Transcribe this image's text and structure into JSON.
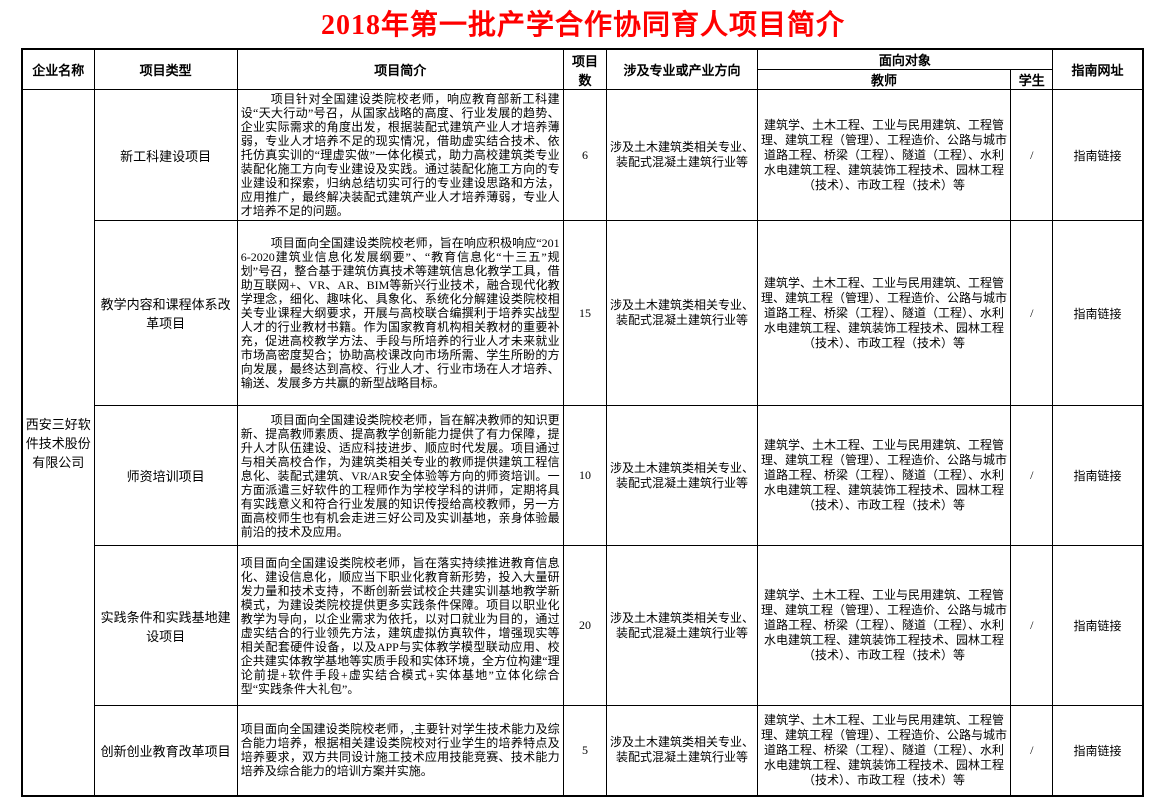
{
  "title": "2018年第一批产学合作协同育人项目简介",
  "colors": {
    "title_red": "#ff0000",
    "border": "#000000",
    "background": "#ffffff"
  },
  "table": {
    "header": {
      "company": "企业名称",
      "type": "项目类型",
      "intro": "项目简介",
      "count": "项目数",
      "majors": "涉及专业或产业方向",
      "audience": "面向对象",
      "teacher": "教师",
      "student": "学生",
      "url": "指南网址"
    },
    "company": "西安三好软件技术股份有限公司",
    "rows": [
      {
        "type": "新工科建设项目",
        "intro": "项目针对全国建设类院校老师，响应教育部新工科建设“天大行动”号召，从国家战略的高度、行业发展的趋势、企业实际需求的角度出发，根据装配式建筑产业人才培养薄弱，专业人才培养不足的现实情况，借助虚实结合技术、依托仿真实训的“理虚实做”一体化模式，助力高校建筑类专业装配化施工方向专业建设及实践。通过装配化施工方向的专业建设和探索，归纳总结切实可行的专业建设思路和方法，应用推广，最终解决装配式建筑产业人才培养薄弱，专业人才培养不足的问题。",
        "count": "6",
        "majors": "涉及土木建筑类相关专业、装配式混凝土建筑行业等",
        "teachers": "建筑学、土木工程、工业与民用建筑、工程管理、建筑工程（管理）、工程造价、公路与城市道路工程、桥梁（工程）、隧道（工程）、水利水电建筑工程、建筑装饰工程技术、园林工程（技术）、市政工程（技术）等",
        "students": "/",
        "url": "指南链接"
      },
      {
        "type": "教学内容和课程体系改革项目",
        "intro": "项目面向全国建设类院校老师，旨在响应积极响应“2016-2020建筑业信息化发展纲要”、“教育信息化“十三五”规划”号召，整合基于建筑仿真技术等建筑信息化教学工具，借助互联网+、VR、AR、BIM等新兴行业技术，融合现代化教学理念，细化、趣味化、具象化、系统化分解建设类院校相关专业课程大纲要求，开展与高校联合编撰利于培养实战型人才的行业教材书籍。作为国家教育机构相关教材的重要补充，促进高校教学方法、手段与所培养的行业人才未来就业市场高密度契合；协助高校课改向市场所需、学生所盼的方向发展，最终达到高校、行业人才、行业市场在人才培养、输送、发展多方共赢的新型战略目标。",
        "count": "15",
        "majors": "涉及土木建筑类相关专业、装配式混凝土建筑行业等",
        "teachers": "建筑学、土木工程、工业与民用建筑、工程管理、建筑工程（管理）、工程造价、公路与城市道路工程、桥梁（工程）、隧道（工程）、水利水电建筑工程、建筑装饰工程技术、园林工程（技术）、市政工程（技术）等",
        "students": "/",
        "url": "指南链接"
      },
      {
        "type": "师资培训项目",
        "intro": "项目面向全国建设类院校老师，旨在解决教师的知识更新、提高教师素质、提高教学创新能力提供了有力保障，提升人才队伍建设、适应科技进步、顺应时代发展。项目通过与相关高校合作，为建筑类相关专业的教师提供建筑工程信息化、装配式建筑、VR/AR安全体验等方向的师资培训。一方面派遣三好软件的工程师作为学校学科的讲师，定期将具有实践意义和符合行业发展的知识传授给高校教师，另一方面高校师生也有机会走进三好公司及实训基地，亲身体验最前沿的技术及应用。",
        "count": "10",
        "majors": "涉及土木建筑类相关专业、装配式混凝土建筑行业等",
        "teachers": "建筑学、土木工程、工业与民用建筑、工程管理、建筑工程（管理）、工程造价、公路与城市道路工程、桥梁（工程）、隧道（工程）、水利水电建筑工程、建筑装饰工程技术、园林工程（技术）、市政工程（技术）等",
        "students": "/",
        "url": "指南链接"
      },
      {
        "type": "实践条件和实践基地建设项目",
        "intro": "项目面向全国建设类院校老师，旨在落实持续推进教育信息化、建设信息化，顺应当下职业化教育新形势，投入大量研发力量和技术支持，不断创新尝试校企共建实训基地教学新模式，为建设类院校提供更多实践条件保障。项目以职业化教学为导向，以企业需求为依托，以对口就业为目的，通过虚实结合的行业领先方法，建筑虚拟仿真软件，增强现实等相关配套硬件设备，以及APP与实体教学模型联动应用、校企共建实体教学基地等实质手段和实体环境，全方位构建“理论前提+软件手段+虚实结合模式+实体基地”立体化综合型“实践条件大礼包”。",
        "count": "20",
        "majors": "涉及土木建筑类相关专业、装配式混凝土建筑行业等",
        "teachers": "建筑学、土木工程、工业与民用建筑、工程管理、建筑工程（管理）、工程造价、公路与城市道路工程、桥梁（工程）、隧道（工程）、水利水电建筑工程、建筑装饰工程技术、园林工程（技术）、市政工程（技术）等",
        "students": "/",
        "url": "指南链接"
      },
      {
        "type": "创新创业教育改革项目",
        "intro": "项目面向全国建设类院校老师，,主要针对学生技术能力及综合能力培养，根据相关建设类院校对行业学生的培养特点及培养要求，双方共同设计施工技术应用技能竞赛、技术能力培养及综合能力的培训方案并实施。",
        "count": "5",
        "majors": "涉及土木建筑类相关专业、装配式混凝土建筑行业等",
        "teachers": "建筑学、土木工程、工业与民用建筑、工程管理、建筑工程（管理）、工程造价、公路与城市道路工程、桥梁（工程）、隧道（工程）、水利水电建筑工程、建筑装饰工程技术、园林工程（技术）、市政工程（技术）等",
        "students": "/",
        "url": "指南链接"
      }
    ]
  }
}
